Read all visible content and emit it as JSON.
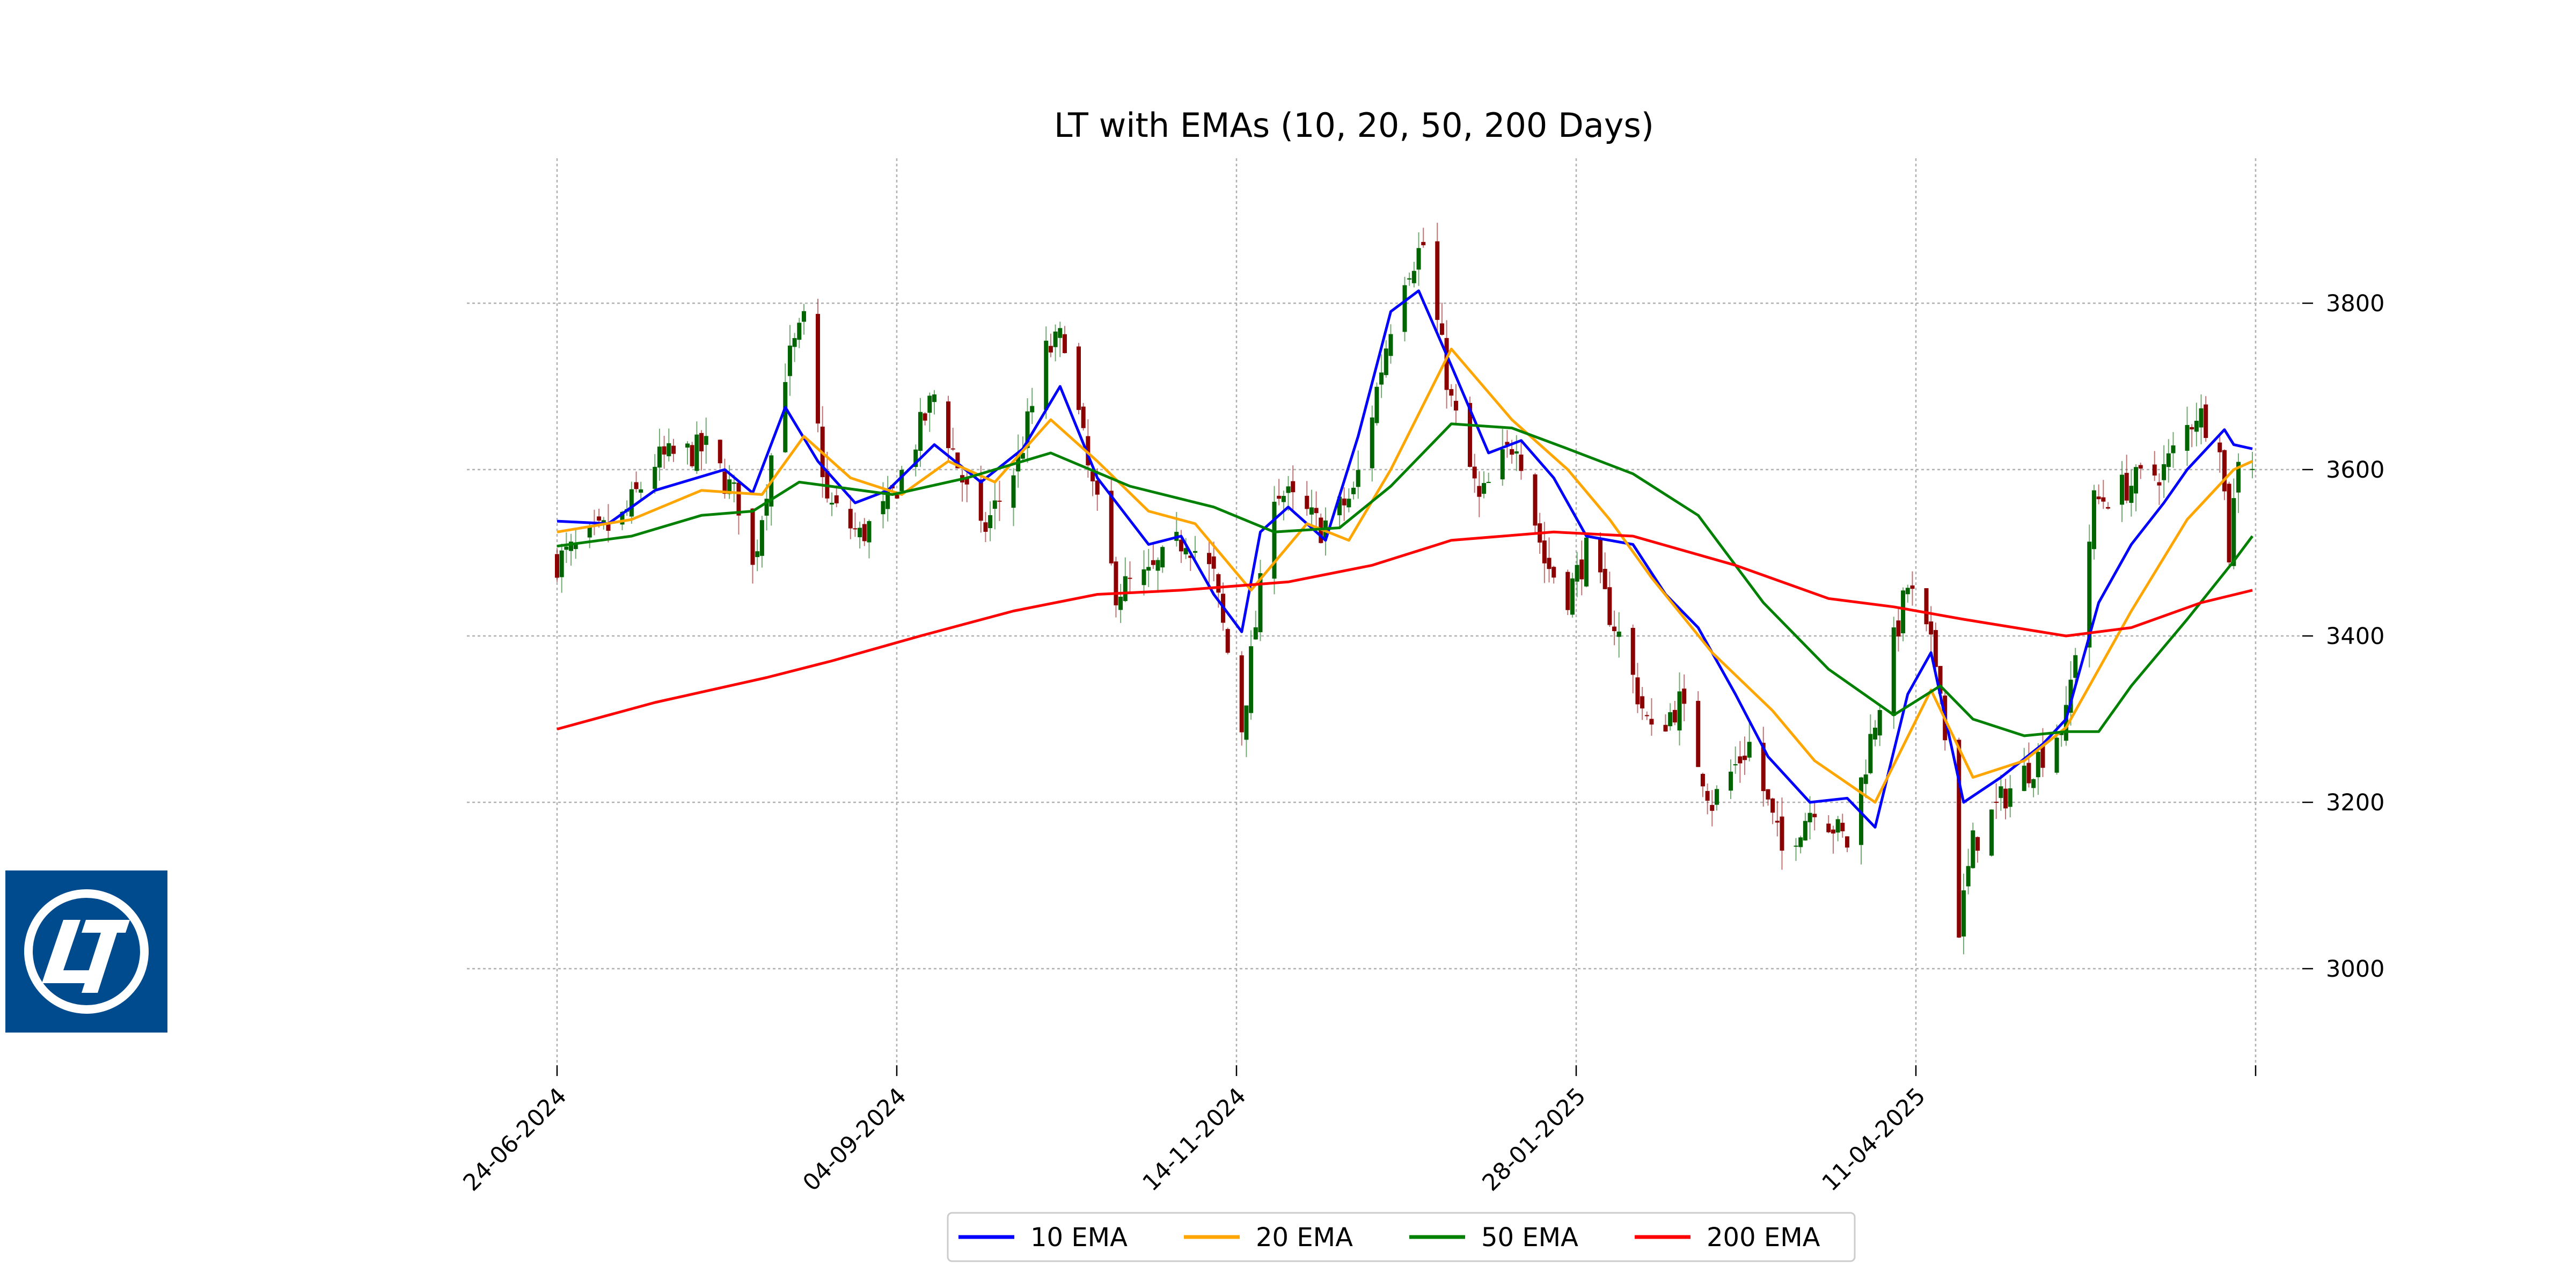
{
  "chart_data": {
    "type": "candlestick",
    "title": "LT with EMAs (10, 20, 50, 200 Days)",
    "xlabel": "",
    "ylabel": "",
    "x_tick_labels": [
      "24-06-2024",
      "04-09-2024",
      "14-11-2024",
      "28-01-2025",
      "11-04-2025"
    ],
    "y_ticks": [
      3000,
      3200,
      3400,
      3600,
      3800
    ],
    "ylim": [
      2880,
      3925
    ],
    "x_range": [
      "2024-06-24",
      "2025-06-23"
    ],
    "grid": true,
    "legend_position": "bottom-center",
    "candle_colors": {
      "up": "#006400",
      "down": "#8b0000"
    },
    "series": [
      {
        "name": "10 EMA",
        "color": "#0000ff",
        "points": [
          [
            "2024-06-24",
            3538
          ],
          [
            "2024-07-05",
            3535
          ],
          [
            "2024-07-15",
            3575
          ],
          [
            "2024-07-30",
            3600
          ],
          [
            "2024-08-05",
            3572
          ],
          [
            "2024-08-12",
            3675
          ],
          [
            "2024-08-19",
            3610
          ],
          [
            "2024-08-27",
            3560
          ],
          [
            "2024-09-03",
            3575
          ],
          [
            "2024-09-13",
            3630
          ],
          [
            "2024-09-23",
            3585
          ],
          [
            "2024-10-02",
            3625
          ],
          [
            "2024-10-10",
            3700
          ],
          [
            "2024-10-18",
            3590
          ],
          [
            "2024-10-29",
            3510
          ],
          [
            "2024-11-05",
            3520
          ],
          [
            "2024-11-12",
            3450
          ],
          [
            "2024-11-18",
            3405
          ],
          [
            "2024-11-22",
            3525
          ],
          [
            "2024-11-28",
            3555
          ],
          [
            "2024-12-06",
            3515
          ],
          [
            "2024-12-13",
            3640
          ],
          [
            "2024-12-20",
            3790
          ],
          [
            "2024-12-26",
            3815
          ],
          [
            "2025-01-02",
            3725
          ],
          [
            "2025-01-10",
            3620
          ],
          [
            "2025-01-17",
            3635
          ],
          [
            "2025-01-24",
            3590
          ],
          [
            "2025-01-31",
            3520
          ],
          [
            "2025-02-10",
            3510
          ],
          [
            "2025-02-17",
            3450
          ],
          [
            "2025-02-24",
            3410
          ],
          [
            "2025-03-04",
            3330
          ],
          [
            "2025-03-11",
            3255
          ],
          [
            "2025-03-20",
            3200
          ],
          [
            "2025-03-28",
            3205
          ],
          [
            "2025-04-03",
            3170
          ],
          [
            "2025-04-10",
            3330
          ],
          [
            "2025-04-15",
            3380
          ],
          [
            "2025-04-22",
            3200
          ],
          [
            "2025-04-30",
            3230
          ],
          [
            "2025-05-09",
            3270
          ],
          [
            "2025-05-14",
            3300
          ],
          [
            "2025-05-21",
            3440
          ],
          [
            "2025-05-28",
            3510
          ],
          [
            "2025-06-04",
            3560
          ],
          [
            "2025-06-09",
            3600
          ],
          [
            "2025-06-17",
            3648
          ],
          [
            "2025-06-19",
            3630
          ],
          [
            "2025-06-23",
            3625
          ]
        ]
      },
      {
        "name": "20 EMA",
        "color": "#ffa500",
        "points": [
          [
            "2024-06-24",
            3525
          ],
          [
            "2024-07-10",
            3540
          ],
          [
            "2024-07-25",
            3575
          ],
          [
            "2024-08-07",
            3570
          ],
          [
            "2024-08-16",
            3640
          ],
          [
            "2024-08-26",
            3590
          ],
          [
            "2024-09-06",
            3570
          ],
          [
            "2024-09-16",
            3610
          ],
          [
            "2024-09-26",
            3585
          ],
          [
            "2024-10-08",
            3660
          ],
          [
            "2024-10-18",
            3610
          ],
          [
            "2024-10-29",
            3550
          ],
          [
            "2024-11-08",
            3535
          ],
          [
            "2024-11-20",
            3455
          ],
          [
            "2024-12-02",
            3535
          ],
          [
            "2024-12-11",
            3515
          ],
          [
            "2024-12-20",
            3600
          ],
          [
            "2025-01-02",
            3745
          ],
          [
            "2025-01-15",
            3660
          ],
          [
            "2025-01-27",
            3600
          ],
          [
            "2025-02-05",
            3540
          ],
          [
            "2025-02-14",
            3470
          ],
          [
            "2025-02-27",
            3380
          ],
          [
            "2025-03-12",
            3310
          ],
          [
            "2025-03-21",
            3250
          ],
          [
            "2025-04-03",
            3200
          ],
          [
            "2025-04-15",
            3335
          ],
          [
            "2025-04-24",
            3230
          ],
          [
            "2025-05-05",
            3250
          ],
          [
            "2025-05-14",
            3290
          ],
          [
            "2025-05-28",
            3430
          ],
          [
            "2025-06-09",
            3540
          ],
          [
            "2025-06-19",
            3600
          ],
          [
            "2025-06-23",
            3610
          ]
        ]
      },
      {
        "name": "50 EMA",
        "color": "#008000",
        "points": [
          [
            "2024-06-24",
            3508
          ],
          [
            "2024-07-10",
            3520
          ],
          [
            "2024-07-25",
            3545
          ],
          [
            "2024-08-05",
            3550
          ],
          [
            "2024-08-15",
            3585
          ],
          [
            "2024-09-04",
            3570
          ],
          [
            "2024-09-20",
            3590
          ],
          [
            "2024-10-08",
            3620
          ],
          [
            "2024-10-25",
            3580
          ],
          [
            "2024-11-12",
            3555
          ],
          [
            "2024-11-25",
            3525
          ],
          [
            "2024-12-09",
            3530
          ],
          [
            "2024-12-20",
            3580
          ],
          [
            "2025-01-02",
            3655
          ],
          [
            "2025-01-15",
            3650
          ],
          [
            "2025-01-27",
            3625
          ],
          [
            "2025-02-10",
            3595
          ],
          [
            "2025-02-24",
            3545
          ],
          [
            "2025-03-10",
            3440
          ],
          [
            "2025-03-24",
            3360
          ],
          [
            "2025-04-07",
            3305
          ],
          [
            "2025-04-17",
            3340
          ],
          [
            "2025-04-24",
            3300
          ],
          [
            "2025-05-05",
            3280
          ],
          [
            "2025-05-14",
            3285
          ],
          [
            "2025-05-21",
            3285
          ],
          [
            "2025-05-28",
            3340
          ],
          [
            "2025-06-09",
            3420
          ],
          [
            "2025-06-19",
            3490
          ],
          [
            "2025-06-23",
            3520
          ]
        ]
      },
      {
        "name": "200 EMA",
        "color": "#ff0000",
        "points": [
          [
            "2024-06-24",
            3288
          ],
          [
            "2024-07-15",
            3320
          ],
          [
            "2024-08-08",
            3350
          ],
          [
            "2024-08-22",
            3370
          ],
          [
            "2024-09-10",
            3400
          ],
          [
            "2024-09-30",
            3430
          ],
          [
            "2024-10-18",
            3450
          ],
          [
            "2024-11-05",
            3455
          ],
          [
            "2024-11-28",
            3465
          ],
          [
            "2024-12-16",
            3485
          ],
          [
            "2025-01-02",
            3515
          ],
          [
            "2025-01-24",
            3525
          ],
          [
            "2025-02-10",
            3520
          ],
          [
            "2025-03-04",
            3485
          ],
          [
            "2025-03-24",
            3445
          ],
          [
            "2025-04-07",
            3435
          ],
          [
            "2025-04-22",
            3420
          ],
          [
            "2025-05-14",
            3400
          ],
          [
            "2025-05-28",
            3410
          ],
          [
            "2025-06-12",
            3440
          ],
          [
            "2025-06-23",
            3455
          ]
        ]
      }
    ],
    "price_path": [
      [
        "2024-06-24",
        3490
      ],
      [
        "2024-07-08",
        3540
      ],
      [
        "2024-07-15",
        3610
      ],
      [
        "2024-07-26",
        3625
      ],
      [
        "2024-08-02",
        3560
      ],
      [
        "2024-08-05",
        3480
      ],
      [
        "2024-08-12",
        3720
      ],
      [
        "2024-08-16",
        3775
      ],
      [
        "2024-08-21",
        3560
      ],
      [
        "2024-08-28",
        3520
      ],
      [
        "2024-09-03",
        3555
      ],
      [
        "2024-09-13",
        3690
      ],
      [
        "2024-09-23",
        3520
      ],
      [
        "2024-10-01",
        3610
      ],
      [
        "2024-10-07",
        3740
      ],
      [
        "2024-10-11",
        3760
      ],
      [
        "2024-10-16",
        3600
      ],
      [
        "2024-10-22",
        3455
      ],
      [
        "2024-10-29",
        3470
      ],
      [
        "2024-11-06",
        3520
      ],
      [
        "2024-11-12",
        3470
      ],
      [
        "2024-11-18",
        3290
      ],
      [
        "2024-11-25",
        3580
      ],
      [
        "2024-12-05",
        3530
      ],
      [
        "2024-12-12",
        3570
      ],
      [
        "2024-12-16",
        3670
      ],
      [
        "2024-12-22",
        3830
      ],
      [
        "2024-12-27",
        3870
      ],
      [
        "2025-01-02",
        3680
      ],
      [
        "2025-01-08",
        3560
      ],
      [
        "2025-01-16",
        3640
      ],
      [
        "2025-01-22",
        3490
      ],
      [
        "2025-01-27",
        3450
      ],
      [
        "2025-01-31",
        3500
      ],
      [
        "2025-02-07",
        3400
      ],
      [
        "2025-02-14",
        3280
      ],
      [
        "2025-02-20",
        3320
      ],
      [
        "2025-02-27",
        3200
      ],
      [
        "2025-03-07",
        3270
      ],
      [
        "2025-03-14",
        3140
      ],
      [
        "2025-03-21",
        3200
      ],
      [
        "2025-03-28",
        3150
      ],
      [
        "2025-04-03",
        3300
      ],
      [
        "2025-04-10",
        3460
      ],
      [
        "2025-04-14",
        3400
      ],
      [
        "2025-04-17",
        3350
      ],
      [
        "2025-04-21",
        3050
      ],
      [
        "2025-04-24",
        3150
      ],
      [
        "2025-05-01",
        3210
      ],
      [
        "2025-05-09",
        3260
      ],
      [
        "2025-05-14",
        3300
      ],
      [
        "2025-05-20",
        3560
      ],
      [
        "2025-05-27",
        3580
      ],
      [
        "2025-06-04",
        3600
      ],
      [
        "2025-06-11",
        3670
      ],
      [
        "2025-06-16",
        3640
      ],
      [
        "2025-06-18",
        3500
      ],
      [
        "2025-06-20",
        3620
      ],
      [
        "2025-06-23",
        3610
      ]
    ]
  },
  "legend": [
    {
      "label": "10 EMA",
      "color": "#0000ff"
    },
    {
      "label": "20 EMA",
      "color": "#ffa500"
    },
    {
      "label": "50 EMA",
      "color": "#008000"
    },
    {
      "label": "200 EMA",
      "color": "#ff0000"
    }
  ],
  "logo": {
    "name": "L&T logo",
    "bg_color": "#004b8d",
    "fg_color": "#ffffff"
  }
}
